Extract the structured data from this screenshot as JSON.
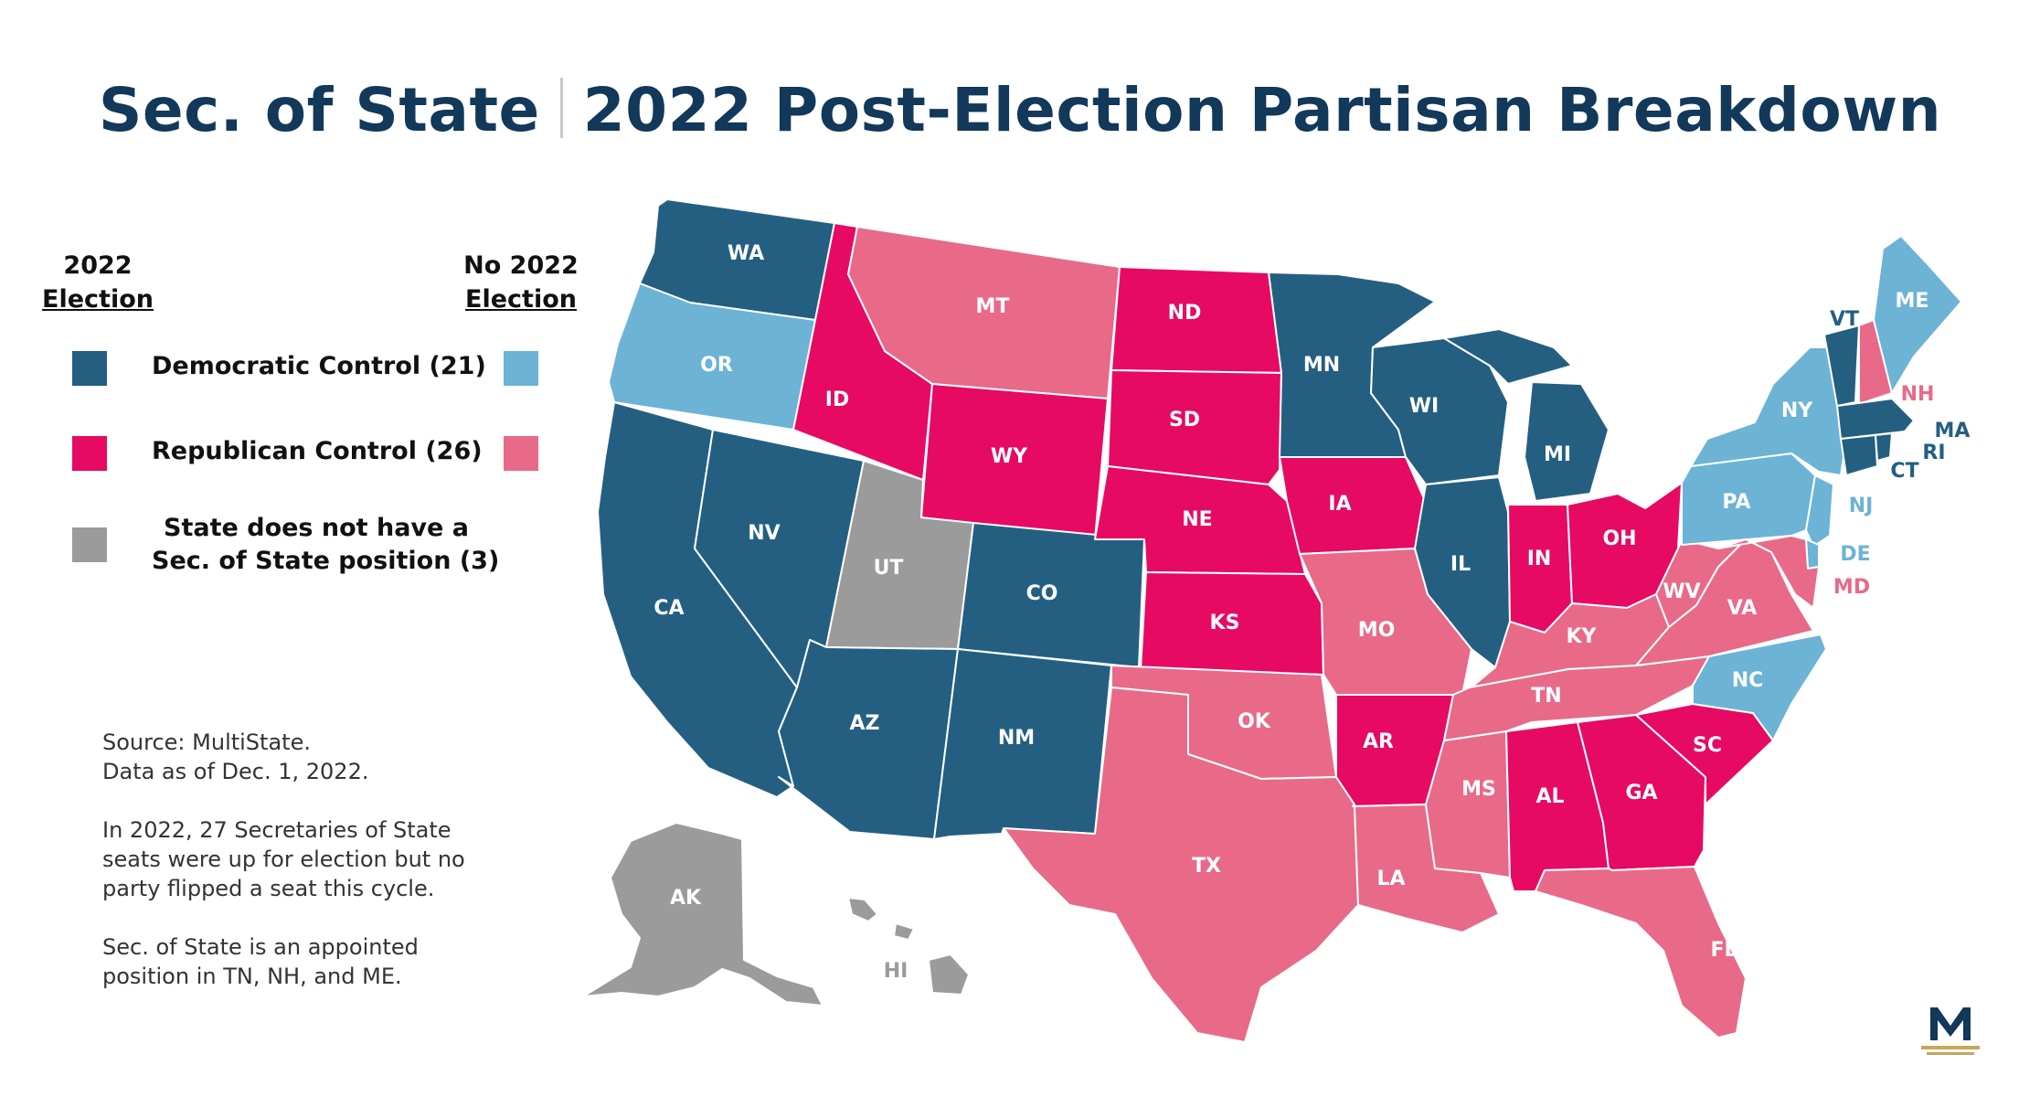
{
  "title_left": "Sec. of State",
  "title_right": "2022 Post-Election Partisan Breakdown",
  "colors": {
    "dem_2022": "#245f81",
    "rep_2022": "#e60a63",
    "dem_no_election": "#6cb3d6",
    "rep_no_election": "#e86a88",
    "none": "#9b9b9b",
    "title": "#12385a",
    "gold": "#c9a55a"
  },
  "legend": {
    "col1_line1": "2022",
    "col1_line2": "Election",
    "col2_line1": "No 2022",
    "col2_line2": "Election",
    "dem_label": "Democratic Control (21)",
    "rep_label": "Republican Control (26)",
    "none_line1": "State does not have a",
    "none_line2": "Sec. of State position (3)"
  },
  "notes": {
    "source": "Source: MultiState.",
    "date": "Data as of Dec. 1, 2022.",
    "para1": "In 2022, 27 Secretaries of State seats were up for election but no party flipped a seat this cycle.",
    "para2": "Sec. of State is an appointed position in TN, NH, and ME."
  },
  "logo_letter": "M",
  "states": [
    {
      "abbr": "WA",
      "status": "dem_2022"
    },
    {
      "abbr": "OR",
      "status": "dem_no_election"
    },
    {
      "abbr": "CA",
      "status": "dem_2022"
    },
    {
      "abbr": "NV",
      "status": "dem_2022"
    },
    {
      "abbr": "ID",
      "status": "rep_2022"
    },
    {
      "abbr": "MT",
      "status": "rep_no_election"
    },
    {
      "abbr": "WY",
      "status": "rep_2022"
    },
    {
      "abbr": "UT",
      "status": "none"
    },
    {
      "abbr": "AZ",
      "status": "dem_2022"
    },
    {
      "abbr": "NM",
      "status": "dem_2022"
    },
    {
      "abbr": "CO",
      "status": "dem_2022"
    },
    {
      "abbr": "ND",
      "status": "rep_2022"
    },
    {
      "abbr": "SD",
      "status": "rep_2022"
    },
    {
      "abbr": "NE",
      "status": "rep_2022"
    },
    {
      "abbr": "KS",
      "status": "rep_2022"
    },
    {
      "abbr": "OK",
      "status": "rep_no_election"
    },
    {
      "abbr": "TX",
      "status": "rep_no_election"
    },
    {
      "abbr": "MN",
      "status": "dem_2022"
    },
    {
      "abbr": "IA",
      "status": "rep_2022"
    },
    {
      "abbr": "MO",
      "status": "rep_no_election"
    },
    {
      "abbr": "AR",
      "status": "rep_2022"
    },
    {
      "abbr": "LA",
      "status": "rep_no_election"
    },
    {
      "abbr": "WI",
      "status": "dem_2022"
    },
    {
      "abbr": "IL",
      "status": "dem_2022"
    },
    {
      "abbr": "MS",
      "status": "rep_no_election"
    },
    {
      "abbr": "MI",
      "status": "dem_2022"
    },
    {
      "abbr": "IN",
      "status": "rep_2022"
    },
    {
      "abbr": "OH",
      "status": "rep_2022"
    },
    {
      "abbr": "KY",
      "status": "rep_no_election"
    },
    {
      "abbr": "TN",
      "status": "rep_no_election"
    },
    {
      "abbr": "AL",
      "status": "rep_2022"
    },
    {
      "abbr": "GA",
      "status": "rep_2022"
    },
    {
      "abbr": "FL",
      "status": "rep_no_election"
    },
    {
      "abbr": "SC",
      "status": "rep_2022"
    },
    {
      "abbr": "NC",
      "status": "dem_no_election"
    },
    {
      "abbr": "VA",
      "status": "rep_no_election"
    },
    {
      "abbr": "WV",
      "status": "rep_no_election"
    },
    {
      "abbr": "PA",
      "status": "dem_no_election"
    },
    {
      "abbr": "NY",
      "status": "dem_no_election"
    },
    {
      "abbr": "VT",
      "status": "dem_2022"
    },
    {
      "abbr": "NH",
      "status": "rep_no_election"
    },
    {
      "abbr": "ME",
      "status": "dem_no_election"
    },
    {
      "abbr": "MA",
      "status": "dem_2022"
    },
    {
      "abbr": "RI",
      "status": "dem_2022"
    },
    {
      "abbr": "CT",
      "status": "dem_2022"
    },
    {
      "abbr": "NJ",
      "status": "dem_no_election"
    },
    {
      "abbr": "DE",
      "status": "dem_no_election"
    },
    {
      "abbr": "MD",
      "status": "rep_no_election"
    },
    {
      "abbr": "AK",
      "status": "none"
    },
    {
      "abbr": "HI",
      "status": "none"
    }
  ]
}
